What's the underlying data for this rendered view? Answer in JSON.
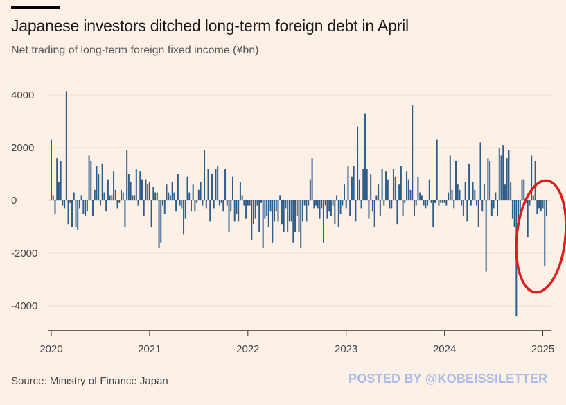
{
  "header": {
    "title": "Japanese investors ditched long-term foreign debt in April",
    "subtitle": "Net trading of long-term foreign fixed income (¥bn)"
  },
  "footer": {
    "source": "Source: Ministry of Finance Japan",
    "watermark": "POSTED BY @KOBEISSILETTER"
  },
  "colors": {
    "bar": "#2f5d8a",
    "grid": "#e8ddd3",
    "axis": "#333333",
    "annotation_circle": "#e01b1b",
    "background": "#fdf1e7"
  },
  "chart_data": {
    "type": "bar",
    "title": "Japanese investors ditched long-term foreign debt in April",
    "subtitle": "Net trading of long-term foreign fixed income (¥bn)",
    "xlabel": "",
    "ylabel": "",
    "ylim": [
      -4800,
      4300
    ],
    "yticks": [
      4000,
      2000,
      0,
      -2000,
      -4000
    ],
    "ytick_labels": [
      "4000",
      "2000",
      "0",
      "-2000",
      "-4000"
    ],
    "x_tick_labels": [
      "2020",
      "2021",
      "2022",
      "2023",
      "2024",
      "2025"
    ],
    "x_start": "2020-01",
    "x_end": "2025-04",
    "frequency": "weekly",
    "grid": true,
    "legend": "none",
    "annotation": "red circle around April 2025 outflows",
    "values": [
      2300,
      200,
      -500,
      1600,
      700,
      1500,
      -200,
      -300,
      4150,
      -900,
      -100,
      -1000,
      300,
      -1000,
      -1100,
      -300,
      200,
      -500,
      -600,
      -400,
      1700,
      1500,
      -600,
      400,
      1300,
      1000,
      -200,
      1400,
      300,
      -400,
      800,
      200,
      200,
      1100,
      400,
      -300,
      -100,
      400,
      300,
      -1000,
      1900,
      1000,
      700,
      200,
      200,
      1200,
      -200,
      1100,
      800,
      -600,
      800,
      600,
      700,
      -1000,
      500,
      300,
      300,
      -1800,
      -1600,
      -200,
      -500,
      600,
      300,
      200,
      700,
      300,
      -400,
      1000,
      -200,
      -300,
      -1300,
      -700,
      900,
      300,
      -400,
      600,
      -400,
      -100,
      400,
      700,
      -200,
      1900,
      -300,
      1200,
      -800,
      1000,
      -300,
      1200,
      1300,
      -200,
      -100,
      -400,
      1200,
      -200,
      -1200,
      -400,
      900,
      -800,
      -500,
      -800,
      700,
      200,
      -200,
      -700,
      -200,
      -200,
      -1500,
      -900,
      -700,
      -200,
      -1200,
      -100,
      -1800,
      -700,
      -600,
      -1000,
      -400,
      -1600,
      -800,
      -400,
      -800,
      200,
      -900,
      -1200,
      -300,
      -1200,
      -800,
      -800,
      -1600,
      -1200,
      -600,
      -1200,
      -1800,
      -800,
      -200,
      -800,
      -200,
      800,
      1600,
      -300,
      -200,
      -300,
      -700,
      -300,
      -1600,
      -200,
      -700,
      -400,
      -600,
      -200,
      -900,
      200,
      -1000,
      -500,
      -200,
      600,
      -300,
      1300,
      -600,
      900,
      1300,
      -800,
      2800,
      800,
      -300,
      1200,
      3300,
      1200,
      -700,
      1000,
      -400,
      -1000,
      200,
      600,
      -600,
      1200,
      -200,
      1100,
      800,
      -300,
      -300,
      1200,
      900,
      -900,
      600,
      1300,
      -600,
      -100,
      1100,
      800,
      400,
      3600,
      -600,
      -200,
      900,
      300,
      200,
      -200,
      -300,
      -200,
      800,
      -100,
      -1000,
      -100,
      2300,
      -200,
      -100,
      -100,
      -100,
      -200,
      300,
      1700,
      400,
      -300,
      1500,
      600,
      400,
      -200,
      -600,
      700,
      -800,
      1400,
      -200,
      700,
      400,
      -200,
      -1000,
      2200,
      -400,
      600,
      -2700,
      1600,
      1500,
      -600,
      -300,
      300,
      -600,
      2000,
      1700,
      2100,
      600,
      1600,
      1900,
      700,
      -700,
      -1000,
      -4400,
      -800,
      -700,
      800,
      800,
      -100,
      -1400,
      -200,
      1700,
      200,
      1500,
      -500,
      -300,
      -400,
      -300,
      -2500,
      -600
    ]
  }
}
